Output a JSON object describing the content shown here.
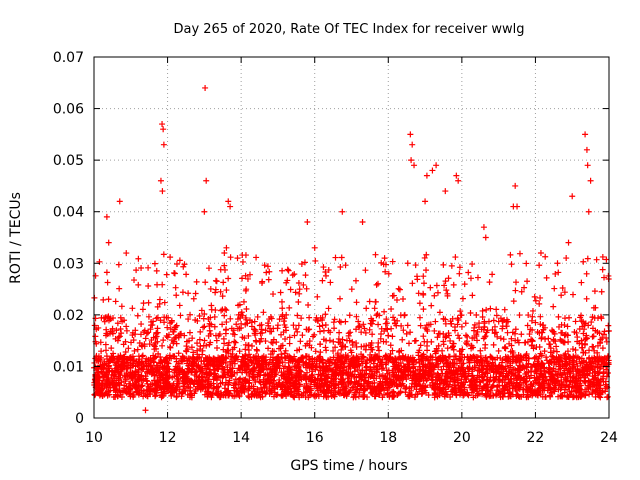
{
  "chart_data": {
    "type": "scatter",
    "title": "Day 265 of 2020, Rate Of TEC Index for receiver wwlg",
    "xlabel": "GPS time / hours",
    "ylabel": "ROTI / TECUs",
    "xlim": [
      10,
      24
    ],
    "ylim": [
      0,
      0.07
    ],
    "x_ticks": [
      "10",
      "12",
      "14",
      "16",
      "18",
      "20",
      "22",
      "24"
    ],
    "y_ticks": [
      "0",
      "0.01",
      "0.02",
      "0.03",
      "0.04",
      "0.05",
      "0.06",
      "0.07"
    ],
    "grid": true,
    "marker": "+",
    "series": [
      {
        "name": "wwlg",
        "color": "#ff0000",
        "x": [
          10.05,
          10.2,
          10.35,
          10.5,
          10.65,
          10.8,
          10.95,
          11.1,
          11.25,
          11.4,
          11.55,
          11.7,
          11.85,
          12.0,
          12.15,
          12.3,
          12.45,
          12.6,
          12.75,
          12.9,
          13.05,
          13.2,
          13.35,
          13.5,
          13.65,
          13.8,
          13.95,
          14.1,
          14.25,
          14.4,
          14.55,
          14.7,
          14.85,
          15.0,
          15.15,
          15.3,
          15.45,
          15.6,
          15.75,
          15.9,
          16.05,
          16.2,
          16.35,
          16.5,
          16.65,
          16.8,
          16.95,
          17.1,
          17.25,
          17.4,
          17.55,
          17.7,
          17.85,
          18.0,
          18.15,
          18.3,
          18.45,
          18.6,
          18.75,
          18.9,
          19.05,
          19.2,
          19.35,
          19.5,
          19.65,
          19.8,
          19.95,
          20.1,
          20.25,
          20.4,
          20.55,
          20.7,
          20.85,
          21.0,
          21.15,
          21.3,
          21.45,
          21.6,
          21.75,
          21.9,
          22.05,
          22.2,
          22.35,
          22.5,
          22.65,
          22.8,
          22.95,
          23.1,
          23.25,
          23.4,
          23.55,
          23.7,
          23.85,
          23.95,
          11.85,
          11.88,
          11.9,
          11.82,
          11.86,
          13.02,
          13.05,
          13.0,
          13.65,
          13.7,
          13.6,
          10.35,
          10.4,
          10.7,
          18.6,
          18.65,
          18.7,
          18.62,
          19.0,
          19.05,
          19.2,
          19.3,
          19.55,
          19.85,
          19.9,
          21.45,
          21.5,
          23.35,
          23.4,
          23.42,
          23.5,
          23.45,
          23.0,
          16.75,
          17.3,
          20.6,
          20.65,
          15.8,
          21.4,
          22.15,
          22.6,
          22.9,
          11.4,
          16.0,
          17.9
        ],
        "y": [
          0.006,
          0.009,
          0.012,
          0.007,
          0.015,
          0.01,
          0.008,
          0.013,
          0.006,
          0.011,
          0.018,
          0.009,
          0.014,
          0.007,
          0.012,
          0.016,
          0.008,
          0.011,
          0.019,
          0.009,
          0.014,
          0.021,
          0.01,
          0.008,
          0.013,
          0.017,
          0.007,
          0.012,
          0.009,
          0.015,
          0.011,
          0.006,
          0.013,
          0.018,
          0.008,
          0.012,
          0.016,
          0.009,
          0.014,
          0.007,
          0.011,
          0.019,
          0.008,
          0.013,
          0.01,
          0.006,
          0.015,
          0.011,
          0.008,
          0.014,
          0.009,
          0.012,
          0.007,
          0.016,
          0.01,
          0.013,
          0.02,
          0.009,
          0.015,
          0.011,
          0.018,
          0.008,
          0.013,
          0.01,
          0.016,
          0.007,
          0.012,
          0.009,
          0.014,
          0.011,
          0.008,
          0.017,
          0.01,
          0.013,
          0.019,
          0.009,
          0.015,
          0.012,
          0.008,
          0.014,
          0.011,
          0.018,
          0.009,
          0.013,
          0.01,
          0.016,
          0.008,
          0.012,
          0.015,
          0.009,
          0.011,
          0.014,
          0.007,
          0.01,
          0.057,
          0.056,
          0.053,
          0.046,
          0.044,
          0.064,
          0.046,
          0.04,
          0.042,
          0.041,
          0.033,
          0.039,
          0.034,
          0.042,
          0.055,
          0.053,
          0.049,
          0.05,
          0.042,
          0.047,
          0.048,
          0.049,
          0.044,
          0.047,
          0.046,
          0.045,
          0.041,
          0.055,
          0.052,
          0.049,
          0.046,
          0.04,
          0.043,
          0.04,
          0.038,
          0.037,
          0.035,
          0.038,
          0.041,
          0.032,
          0.03,
          0.034,
          0.0015,
          0.033,
          0.031
        ]
      }
    ]
  }
}
